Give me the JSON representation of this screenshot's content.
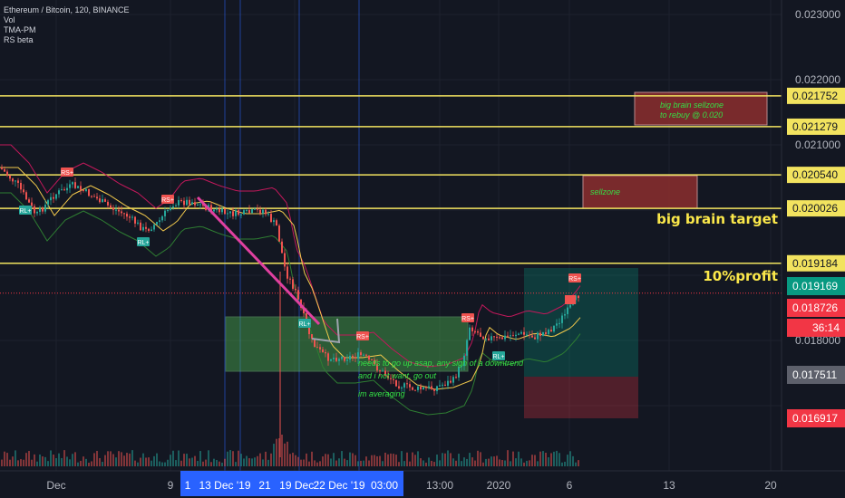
{
  "symbol_legend": {
    "title": "Ethereum / Bitcoin, 120, BINANCE",
    "indicators": [
      "Vol",
      "TMA-PM",
      "RS beta"
    ]
  },
  "colors": {
    "background": "#131722",
    "yellow_line": "#f2e35f",
    "up": "#26a69a",
    "down": "#ef5350",
    "target_green": "#089981",
    "stop_red": "#f23645",
    "pink_arrow": "#e040a0",
    "zone_green": "#4caf50",
    "zone_red": "#8b2e2e"
  },
  "chart_data": {
    "type": "candlestick",
    "title": "Ethereum / Bitcoin, 120, BINANCE",
    "ylim": [
      0.0165,
      0.0231
    ],
    "y_ticks": [
      "0.023000",
      "0.022000",
      "0.021000",
      "0.018000"
    ],
    "x_ticks": [
      "Dec",
      "9",
      "13:00",
      "2020",
      "6",
      "13",
      "20"
    ],
    "horizontal_levels": [
      {
        "price": 0.021752,
        "label": "0.021752"
      },
      {
        "price": 0.021279,
        "label": "0.021279"
      },
      {
        "price": 0.02054,
        "label": "0.020540"
      },
      {
        "price": 0.020026,
        "label": "0.020026"
      },
      {
        "price": 0.019184,
        "label": "0.019184"
      }
    ],
    "price_badges": [
      {
        "price": 0.019169,
        "label": "0.019169",
        "color": "#089981"
      },
      {
        "price": 0.018726,
        "label": "0.018726",
        "color": "#f23645"
      },
      {
        "text": "36:14",
        "color": "#f23645"
      },
      {
        "price": 0.017511,
        "label": "0.017511",
        "color": "#5d606b"
      },
      {
        "price": 0.016917,
        "label": "0.016917",
        "color": "#f23645"
      }
    ],
    "current_price": 0.018726,
    "annotations": {
      "big_brain_target": "big brain target",
      "ten_percent_profit": "10%profit",
      "sellzone": "sellzone",
      "big_brain_sellzone": "big brain sellzone\nto rebuy @ 0.020",
      "note": "needs to go up asap, any sign of a downtrend\nand i not want, go out\nim averaging"
    },
    "signal_markers": [
      "RS+",
      "RL+",
      "RS+",
      "RL+",
      "RS+",
      "RL+",
      "RS+",
      "RL+",
      "RS+"
    ],
    "highlighted_dates": [
      "1",
      "13 Dec '19",
      "21",
      "19 Dec '",
      "22 Dec '19",
      "03:00"
    ]
  }
}
